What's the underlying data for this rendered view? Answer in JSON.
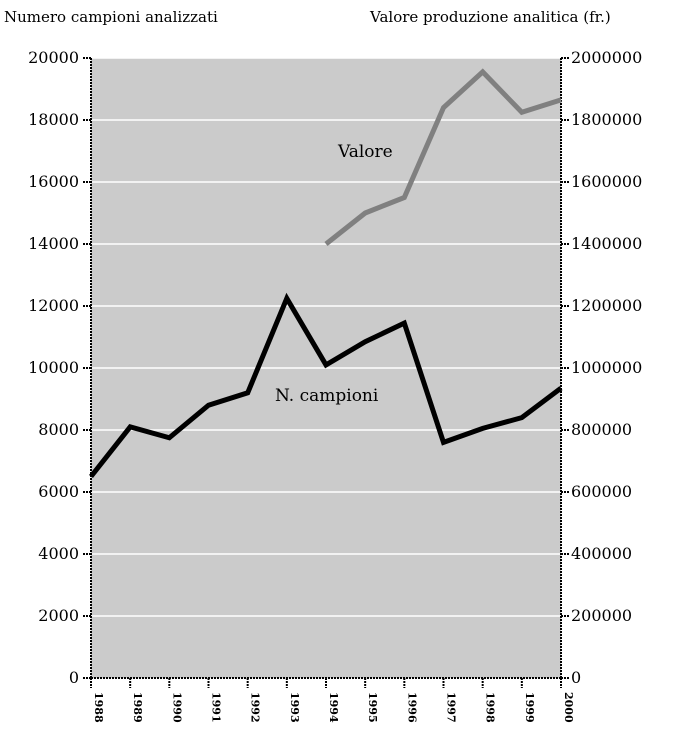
{
  "chart_data": {
    "type": "line",
    "ylabel_left": "Numero campioni analizzati",
    "ylabel_right": "Valore produzione analitica (fr.)",
    "x": [
      "1988",
      "1989",
      "1990",
      "1991",
      "1992",
      "1993",
      "1994",
      "1995",
      "1996",
      "1997",
      "1998",
      "1999",
      "2000"
    ],
    "ylim_left": [
      0,
      20000
    ],
    "ylim_right": [
      0,
      2000000
    ],
    "yticks_left": [
      "0",
      "2000",
      "4000",
      "6000",
      "8000",
      "10000",
      "12000",
      "14000",
      "16000",
      "18000",
      "20000"
    ],
    "yticks_right": [
      "0",
      "200000",
      "400000",
      "600000",
      "800000",
      "1000000",
      "1200000",
      "1400000",
      "1600000",
      "1800000",
      "2000000"
    ],
    "grid": true,
    "series": [
      {
        "name": "N. campioni",
        "axis": "left",
        "color": "#000000",
        "values": [
          6500,
          8100,
          7750,
          8800,
          9200,
          12250,
          10100,
          10850,
          11450,
          7600,
          8050,
          8400,
          9350
        ]
      },
      {
        "name": "Valore",
        "axis": "right",
        "color": "#808080",
        "values": [
          null,
          null,
          null,
          null,
          null,
          null,
          1400000,
          1500000,
          1550000,
          1840000,
          1955000,
          1825000,
          1865000
        ]
      }
    ]
  }
}
